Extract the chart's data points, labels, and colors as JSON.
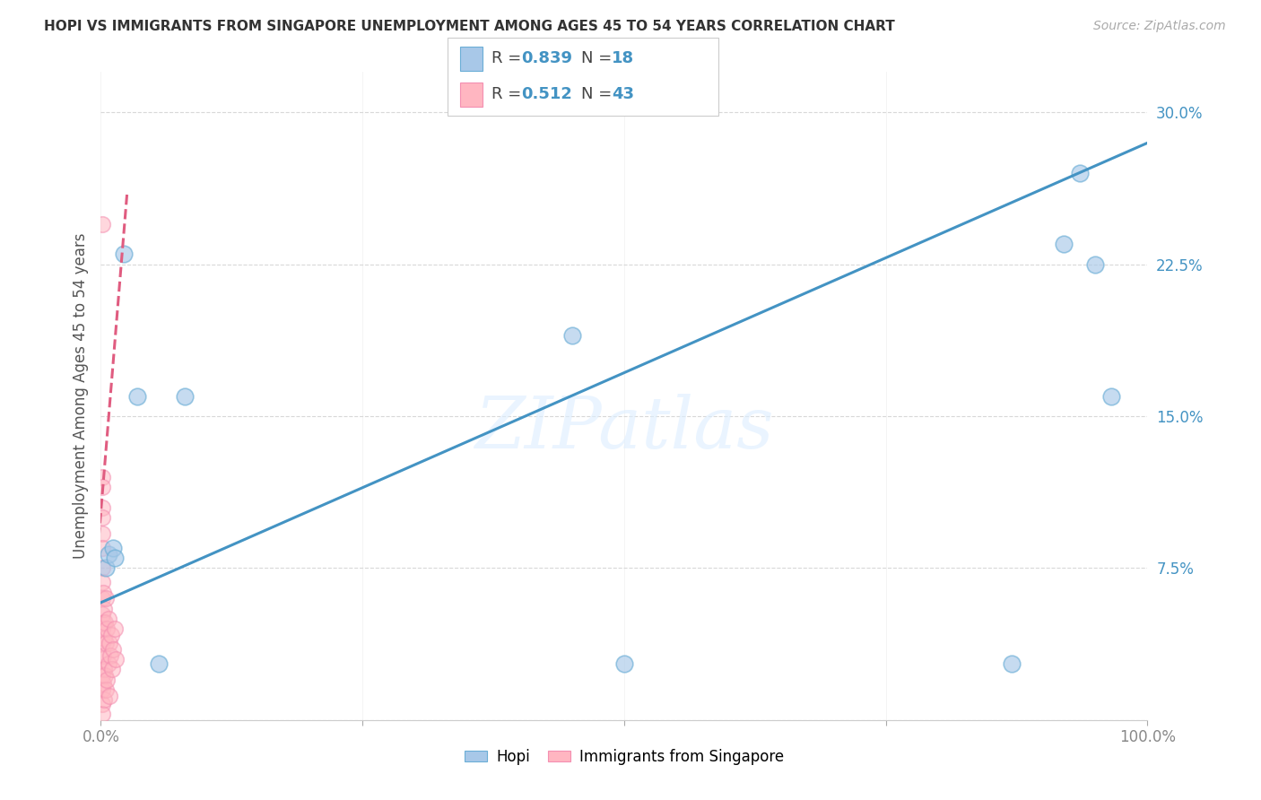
{
  "title": "HOPI VS IMMIGRANTS FROM SINGAPORE UNEMPLOYMENT AMONG AGES 45 TO 54 YEARS CORRELATION CHART",
  "source": "Source: ZipAtlas.com",
  "ylabel": "Unemployment Among Ages 45 to 54 years",
  "legend_labels": [
    "Hopi",
    "Immigrants from Singapore"
  ],
  "xlim": [
    0,
    1.0
  ],
  "ylim": [
    0,
    0.32
  ],
  "yticks": [
    0.0,
    0.075,
    0.15,
    0.225,
    0.3
  ],
  "ytick_labels": [
    "",
    "7.5%",
    "15.0%",
    "22.5%",
    "30.0%"
  ],
  "xtick_positions": [
    0.0,
    0.25,
    0.5,
    0.75,
    1.0
  ],
  "xtick_labels": [
    "0.0%",
    "",
    "",
    "",
    "100.0%"
  ],
  "hopi_scatter": [
    [
      0.005,
      0.075
    ],
    [
      0.007,
      0.082
    ],
    [
      0.012,
      0.085
    ],
    [
      0.013,
      0.08
    ],
    [
      0.022,
      0.23
    ],
    [
      0.035,
      0.16
    ],
    [
      0.055,
      0.028
    ],
    [
      0.08,
      0.16
    ],
    [
      0.45,
      0.19
    ],
    [
      0.5,
      0.028
    ],
    [
      0.87,
      0.028
    ],
    [
      0.92,
      0.235
    ],
    [
      0.935,
      0.27
    ],
    [
      0.95,
      0.225
    ],
    [
      0.965,
      0.16
    ]
  ],
  "singapore_scatter": [
    [
      0.001,
      0.245
    ],
    [
      0.001,
      0.12
    ],
    [
      0.001,
      0.115
    ],
    [
      0.001,
      0.105
    ],
    [
      0.001,
      0.1
    ],
    [
      0.001,
      0.092
    ],
    [
      0.001,
      0.085
    ],
    [
      0.001,
      0.075
    ],
    [
      0.001,
      0.068
    ],
    [
      0.001,
      0.06
    ],
    [
      0.001,
      0.052
    ],
    [
      0.001,
      0.045
    ],
    [
      0.001,
      0.038
    ],
    [
      0.001,
      0.03
    ],
    [
      0.001,
      0.022
    ],
    [
      0.001,
      0.015
    ],
    [
      0.001,
      0.008
    ],
    [
      0.001,
      0.003
    ],
    [
      0.002,
      0.063
    ],
    [
      0.002,
      0.048
    ],
    [
      0.002,
      0.032
    ],
    [
      0.002,
      0.018
    ],
    [
      0.003,
      0.055
    ],
    [
      0.003,
      0.04
    ],
    [
      0.003,
      0.025
    ],
    [
      0.003,
      0.01
    ],
    [
      0.004,
      0.048
    ],
    [
      0.004,
      0.022
    ],
    [
      0.005,
      0.06
    ],
    [
      0.005,
      0.038
    ],
    [
      0.005,
      0.015
    ],
    [
      0.006,
      0.045
    ],
    [
      0.006,
      0.02
    ],
    [
      0.007,
      0.05
    ],
    [
      0.007,
      0.028
    ],
    [
      0.008,
      0.038
    ],
    [
      0.008,
      0.012
    ],
    [
      0.009,
      0.032
    ],
    [
      0.01,
      0.042
    ],
    [
      0.011,
      0.025
    ],
    [
      0.012,
      0.035
    ],
    [
      0.013,
      0.045
    ],
    [
      0.014,
      0.03
    ]
  ],
  "hopi_line_x": [
    0.0,
    1.0
  ],
  "hopi_line_y": [
    0.058,
    0.285
  ],
  "singapore_line_x": [
    -0.01,
    0.025
  ],
  "singapore_line_y": [
    0.04,
    0.26
  ],
  "hopi_color": "#a8c8e8",
  "hopi_edge_color": "#6baed6",
  "singapore_color": "#ffb6c1",
  "singapore_edge_color": "#f48fb1",
  "hopi_line_color": "#4393c3",
  "singapore_line_color": "#e05c80",
  "watermark": "ZIPatlas",
  "background_color": "#ffffff",
  "grid_color": "#d8d8d8",
  "legend_hopi_color": "#a8c8e8",
  "legend_singapore_color": "#ffb6c1",
  "r_n_text_color": "#4393c3",
  "r_n_label_color": "#444444"
}
